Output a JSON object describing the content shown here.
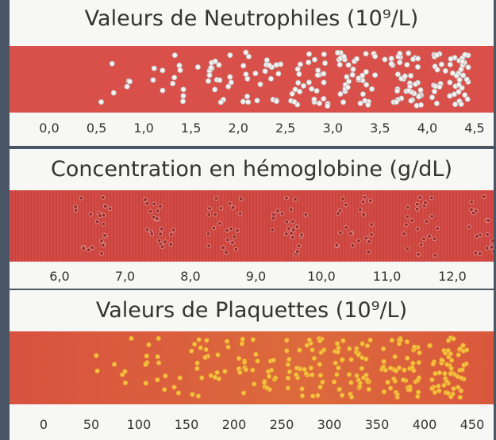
{
  "panels": [
    {
      "title": "Valeurs de Neutrophiles (10⁹/L)",
      "labels": [
        "0,0",
        "0,5",
        "1,0",
        "1,5",
        "2,0",
        "2,5",
        "3,0",
        "3,5",
        "4,0",
        "4,5"
      ]
    },
    {
      "title": "Concentration en hémoglobine (g/dL)",
      "labels": [
        "6,0",
        "7,0",
        "8,0",
        "9,0",
        "10,0",
        "11,0",
        "12,0"
      ]
    },
    {
      "title": "Valeurs de Plaquettes (10⁹/L)",
      "labels": [
        "0",
        "50",
        "100",
        "150",
        "200",
        "250",
        "300",
        "350",
        "400",
        "450"
      ]
    }
  ]
}
